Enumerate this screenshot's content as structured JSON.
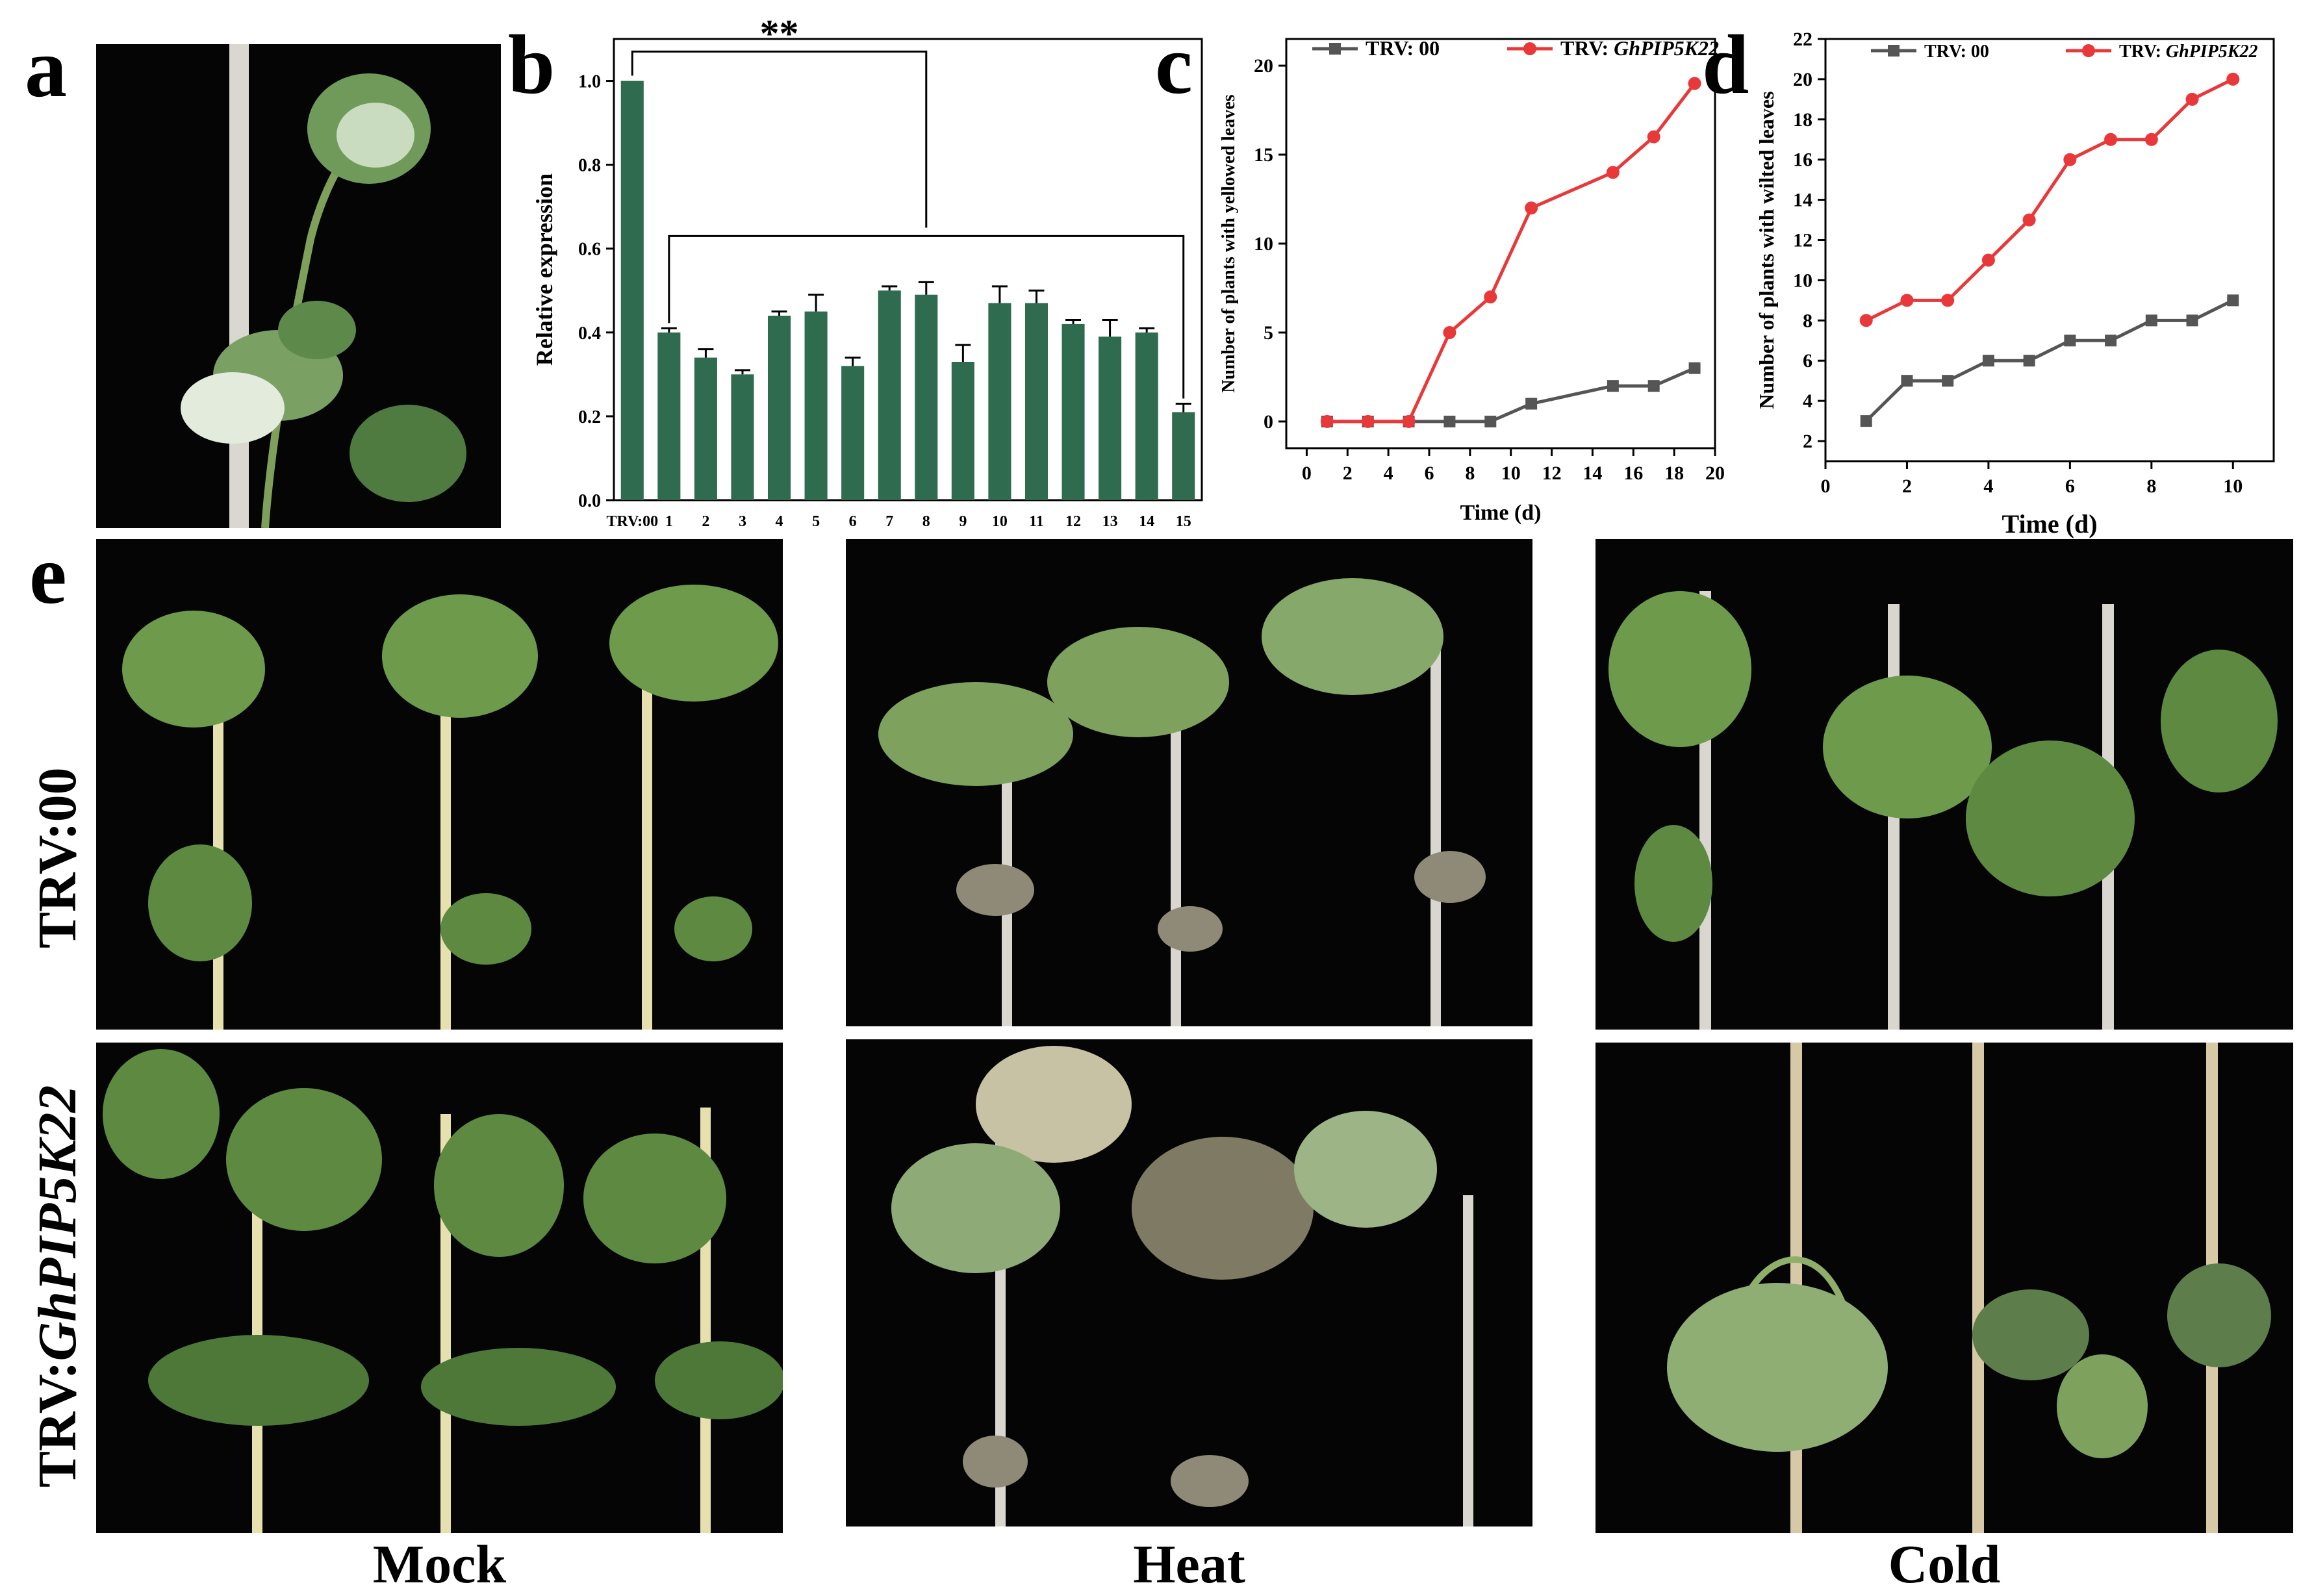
{
  "panels": {
    "a": {
      "letter": "a"
    },
    "b": {
      "letter": "b"
    },
    "c": {
      "letter": "c"
    },
    "d": {
      "letter": "d"
    },
    "e": {
      "letter": "e"
    }
  },
  "photo_rows": [
    "TRV:00",
    "TRV:GhPIP5K22"
  ],
  "photo_row_parts": {
    "prefix": "TRV:",
    "gene": "GhPIP5K22"
  },
  "photo_columns": [
    "Mock",
    "Heat",
    "Cold"
  ],
  "colors": {
    "bar": "#2e6b4f",
    "trv00": "#555555",
    "gene": "#e8383a",
    "photo_bg": "#050505",
    "leaf": "#5f8a45"
  },
  "chart_data": [
    {
      "id": "b",
      "type": "bar",
      "title": "",
      "xlabel": "",
      "ylabel": "Relative expression",
      "categories": [
        "TRV:00",
        "1",
        "2",
        "3",
        "4",
        "5",
        "6",
        "7",
        "8",
        "9",
        "10",
        "11",
        "12",
        "13",
        "14",
        "15"
      ],
      "values": [
        1.0,
        0.4,
        0.34,
        0.3,
        0.44,
        0.45,
        0.32,
        0.5,
        0.49,
        0.33,
        0.47,
        0.47,
        0.42,
        0.39,
        0.4,
        0.21
      ],
      "errors": [
        0.0,
        0.01,
        0.02,
        0.01,
        0.01,
        0.04,
        0.02,
        0.01,
        0.03,
        0.04,
        0.04,
        0.03,
        0.01,
        0.04,
        0.01,
        0.02
      ],
      "ylim": [
        0.0,
        1.1
      ],
      "yticks": [
        "0.0",
        "0.2",
        "0.4",
        "0.6",
        "0.8",
        "1.0"
      ],
      "annotation": "**",
      "grid": false
    },
    {
      "id": "c",
      "type": "line",
      "xlabel": "Time (d)",
      "ylabel": "Number of plants with yellowed leaves",
      "xlim": [
        -1,
        20
      ],
      "ylim": [
        -1.5,
        21.5
      ],
      "xticks": [
        0,
        2,
        4,
        6,
        8,
        10,
        12,
        14,
        16,
        18,
        20
      ],
      "yticks": [
        0,
        5,
        10,
        15,
        20
      ],
      "legend_position": "top",
      "series": [
        {
          "name": "TRV: 00",
          "marker": "square",
          "x": [
            1,
            3,
            5,
            7,
            9,
            11,
            15,
            17,
            19
          ],
          "y": [
            0,
            0,
            0,
            0,
            0,
            1,
            2,
            2,
            3
          ]
        },
        {
          "name_prefix": "TRV: ",
          "name_gene": "GhPIP5K22",
          "marker": "circle",
          "x": [
            1,
            3,
            5,
            7,
            9,
            11,
            15,
            17,
            19
          ],
          "y": [
            0,
            0,
            0,
            5,
            7,
            12,
            14,
            16,
            19
          ]
        }
      ]
    },
    {
      "id": "d",
      "type": "line",
      "xlabel": "Time (d)",
      "ylabel": "Number of plants with wilted leaves",
      "xlim": [
        0,
        11
      ],
      "ylim": [
        1,
        22
      ],
      "xticks": [
        0,
        2,
        4,
        6,
        8,
        10
      ],
      "yticks": [
        2,
        4,
        6,
        8,
        10,
        12,
        14,
        16,
        18,
        20,
        22
      ],
      "legend_position": "top",
      "series": [
        {
          "name": "TRV: 00",
          "marker": "square",
          "x": [
            1,
            2,
            3,
            4,
            5,
            6,
            7,
            8,
            9,
            10
          ],
          "y": [
            3,
            5,
            5,
            6,
            6,
            7,
            7,
            8,
            8,
            9
          ]
        },
        {
          "name_prefix": "TRV: ",
          "name_gene": "GhPIP5K22",
          "marker": "circle",
          "x": [
            1,
            2,
            3,
            4,
            5,
            6,
            7,
            8,
            9,
            10
          ],
          "y": [
            8,
            9,
            9,
            11,
            13,
            16,
            17,
            17,
            19,
            20
          ]
        }
      ]
    }
  ]
}
